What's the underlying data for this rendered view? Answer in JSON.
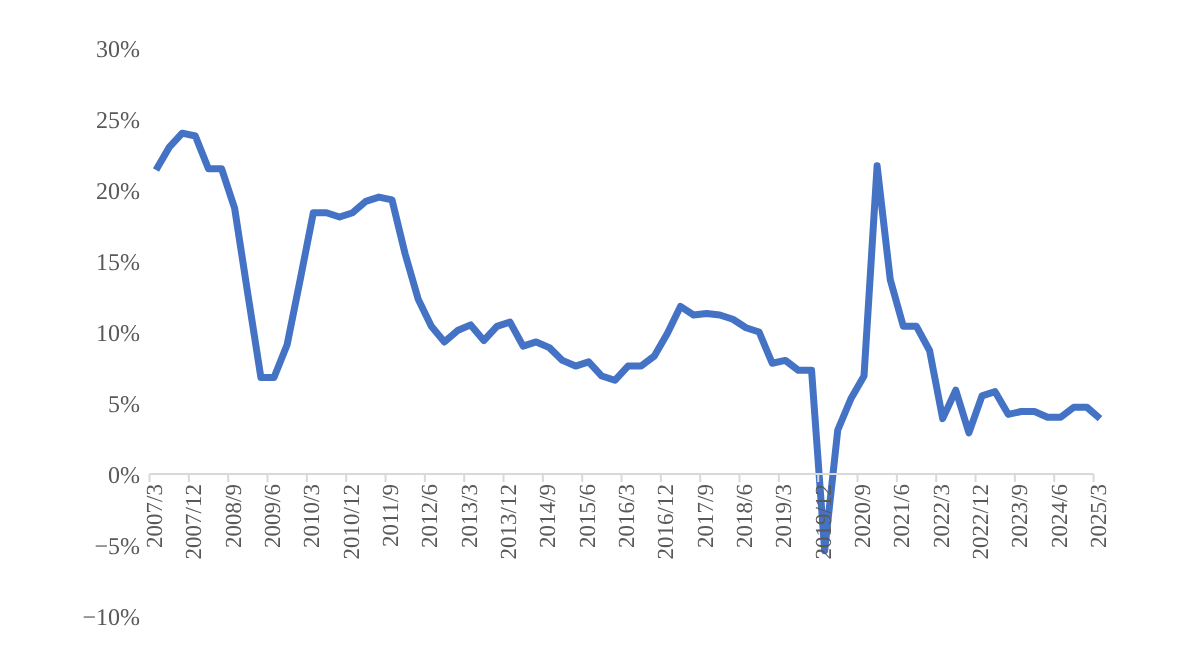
{
  "chart_data": {
    "type": "line",
    "categories": [
      "2007/3",
      null,
      null,
      "2007/12",
      null,
      null,
      "2008/9",
      null,
      null,
      "2009/6",
      null,
      null,
      "2010/3",
      null,
      null,
      "2010/12",
      null,
      null,
      "2011/9",
      null,
      null,
      "2012/6",
      null,
      null,
      "2013/3",
      null,
      null,
      "2013/12",
      null,
      null,
      "2014/9",
      null,
      null,
      "2015/6",
      null,
      null,
      "2016/3",
      null,
      null,
      "2016/12",
      null,
      null,
      "2017/9",
      null,
      null,
      "2018/6",
      null,
      null,
      "2019/3",
      null,
      null,
      "2019/12",
      null,
      null,
      "2020/9",
      null,
      null,
      "2021/6",
      null,
      null,
      "2022/3",
      null,
      null,
      "2022/12",
      null,
      null,
      "2023/9",
      null,
      null,
      "2024/6",
      null,
      null,
      "2025/3"
    ],
    "series": [
      {
        "color": "#4472c4",
        "values": [
          21.4,
          23.0,
          24.0,
          23.8,
          21.5,
          21.5,
          18.7,
          12.7,
          6.8,
          6.8,
          9.1,
          13.7,
          18.4,
          18.4,
          18.1,
          18.4,
          19.2,
          19.5,
          19.3,
          15.5,
          12.3,
          10.4,
          9.3,
          10.1,
          10.5,
          9.4,
          10.4,
          10.7,
          9.0,
          9.3,
          8.9,
          8.0,
          7.6,
          7.9,
          6.9,
          6.6,
          7.6,
          7.6,
          8.3,
          9.9,
          11.8,
          11.2,
          11.3,
          11.2,
          10.9,
          10.3,
          10.0,
          7.8,
          8.0,
          7.3,
          7.3,
          -5.4,
          3.1,
          5.3,
          6.9,
          21.7,
          13.7,
          10.4,
          10.4,
          8.7,
          3.9,
          5.9,
          2.9,
          5.5,
          5.8,
          4.2,
          4.4,
          4.4,
          4.0,
          4.0,
          4.7,
          4.7,
          3.9
        ]
      }
    ],
    "ylim": [
      -10,
      30
    ],
    "yticks": [
      {
        "value": -10,
        "label": "−10%"
      },
      {
        "value": -5,
        "label": "−5%"
      },
      {
        "value": 0,
        "label": "0%"
      },
      {
        "value": 5,
        "label": "5%"
      },
      {
        "value": 10,
        "label": "10%"
      },
      {
        "value": 15,
        "label": "15%"
      },
      {
        "value": 20,
        "label": "20%"
      },
      {
        "value": 25,
        "label": "25%"
      },
      {
        "value": 30,
        "label": "30%"
      }
    ],
    "grid": false,
    "legend": false,
    "marker": "none",
    "line_style": "solid"
  }
}
